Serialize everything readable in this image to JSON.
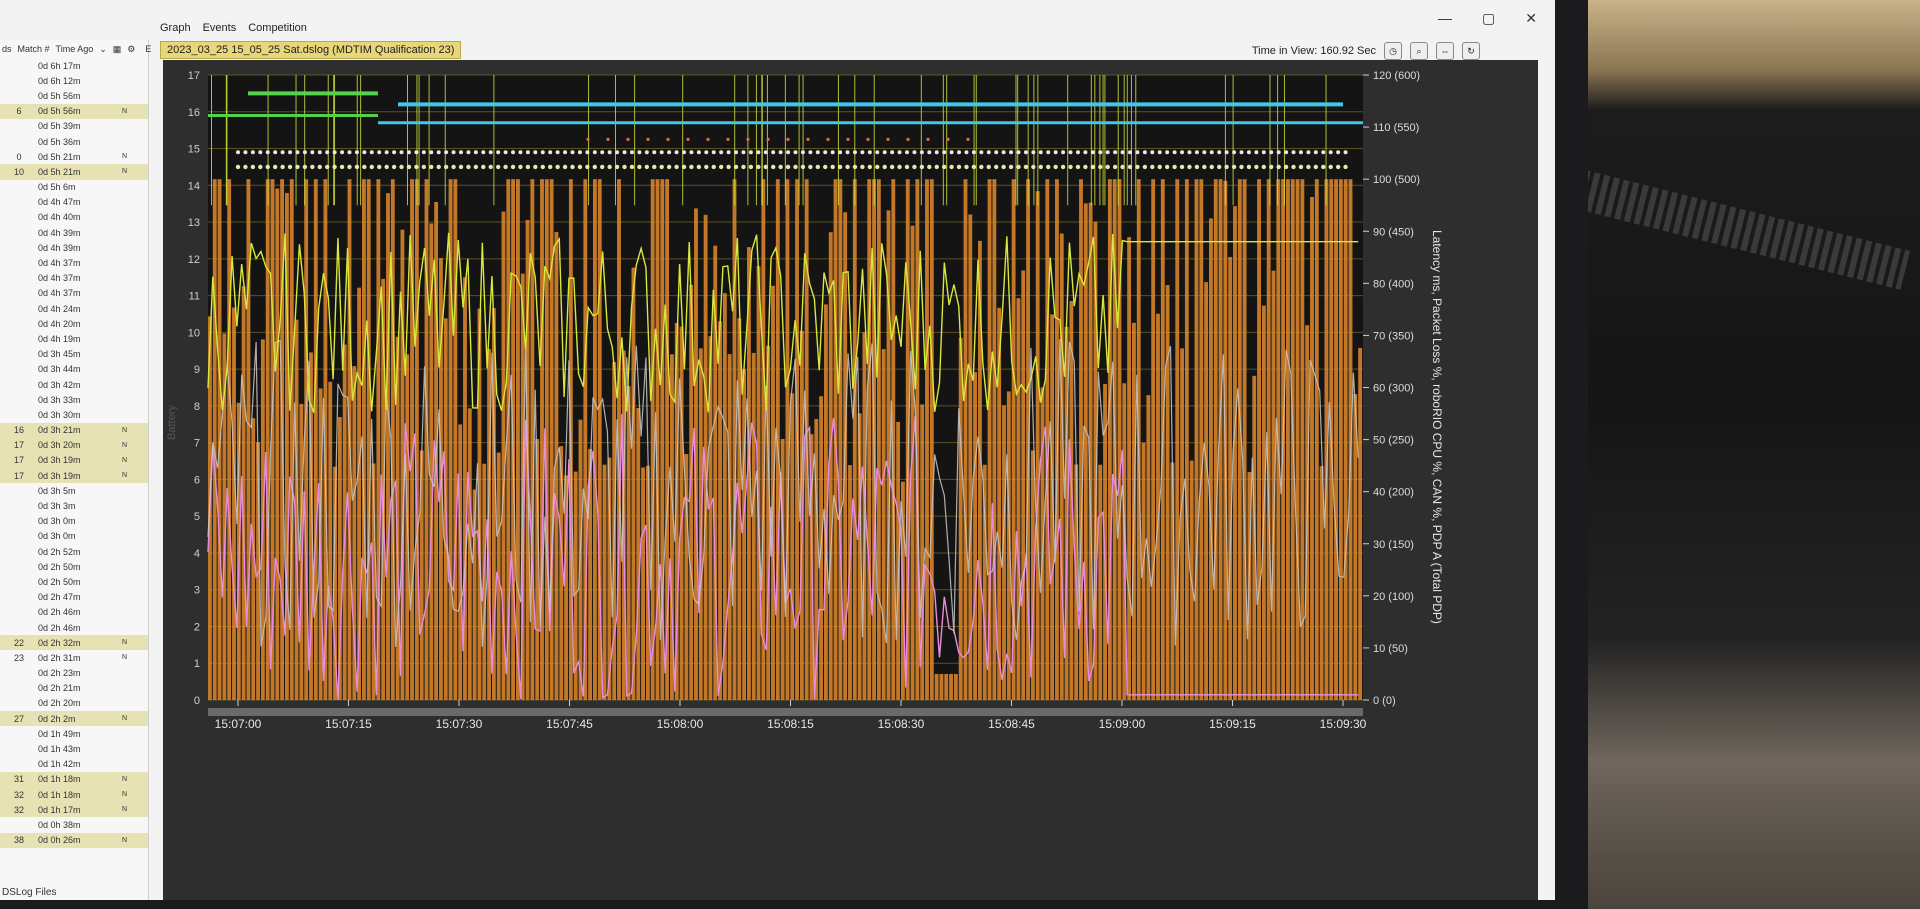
{
  "menu": {
    "graph": "Graph",
    "events": "Events",
    "competition": "Competition"
  },
  "window_controls": {
    "minimize": "—",
    "maximize": "▢",
    "close": "✕"
  },
  "sidebar": {
    "col_a": "ds",
    "col_match": "Match #",
    "col_time": "Time Ago",
    "col_e": "E",
    "rows": [
      {
        "m": "",
        "t": "0d 6h 17m",
        "x": "",
        "hl": false
      },
      {
        "m": "",
        "t": "0d 6h 12m",
        "x": "",
        "hl": false
      },
      {
        "m": "",
        "t": "0d 5h 56m",
        "x": "",
        "hl": false
      },
      {
        "m": "6",
        "t": "0d 5h 56m",
        "x": "N",
        "hl": true
      },
      {
        "m": "",
        "t": "0d 5h 39m",
        "x": "",
        "hl": false
      },
      {
        "m": "",
        "t": "0d 5h 36m",
        "x": "",
        "hl": false
      },
      {
        "m": "0",
        "t": "0d 5h 21m",
        "x": "N",
        "hl": false
      },
      {
        "m": "10",
        "t": "0d 5h 21m",
        "x": "N",
        "hl": true
      },
      {
        "m": "",
        "t": "0d 5h 6m",
        "x": "",
        "hl": false
      },
      {
        "m": "",
        "t": "0d 4h 47m",
        "x": "",
        "hl": false
      },
      {
        "m": "",
        "t": "0d 4h 40m",
        "x": "",
        "hl": false
      },
      {
        "m": "",
        "t": "0d 4h 39m",
        "x": "",
        "hl": false
      },
      {
        "m": "",
        "t": "0d 4h 39m",
        "x": "",
        "hl": false
      },
      {
        "m": "",
        "t": "0d 4h 37m",
        "x": "",
        "hl": false
      },
      {
        "m": "",
        "t": "0d 4h 37m",
        "x": "",
        "hl": false
      },
      {
        "m": "",
        "t": "0d 4h 37m",
        "x": "",
        "hl": false
      },
      {
        "m": "",
        "t": "0d 4h 24m",
        "x": "",
        "hl": false
      },
      {
        "m": "",
        "t": "0d 4h 20m",
        "x": "",
        "hl": false
      },
      {
        "m": "",
        "t": "0d 4h 19m",
        "x": "",
        "hl": false
      },
      {
        "m": "",
        "t": "0d 3h 45m",
        "x": "",
        "hl": false
      },
      {
        "m": "",
        "t": "0d 3h 44m",
        "x": "",
        "hl": false
      },
      {
        "m": "",
        "t": "0d 3h 42m",
        "x": "",
        "hl": false
      },
      {
        "m": "",
        "t": "0d 3h 33m",
        "x": "",
        "hl": false
      },
      {
        "m": "",
        "t": "0d 3h 30m",
        "x": "",
        "hl": false
      },
      {
        "m": "16",
        "t": "0d 3h 21m",
        "x": "N",
        "hl": true
      },
      {
        "m": "17",
        "t": "0d 3h 20m",
        "x": "N",
        "hl": true
      },
      {
        "m": "17",
        "t": "0d 3h 19m",
        "x": "N",
        "hl": true
      },
      {
        "m": "17",
        "t": "0d 3h 19m",
        "x": "N",
        "hl": true
      },
      {
        "m": "",
        "t": "0d 3h 5m",
        "x": "",
        "hl": false
      },
      {
        "m": "",
        "t": "0d 3h 3m",
        "x": "",
        "hl": false
      },
      {
        "m": "",
        "t": "0d 3h 0m",
        "x": "",
        "hl": false
      },
      {
        "m": "",
        "t": "0d 3h 0m",
        "x": "",
        "hl": false
      },
      {
        "m": "",
        "t": "0d 2h 52m",
        "x": "",
        "hl": false
      },
      {
        "m": "",
        "t": "0d 2h 50m",
        "x": "",
        "hl": false
      },
      {
        "m": "",
        "t": "0d 2h 50m",
        "x": "",
        "hl": false
      },
      {
        "m": "",
        "t": "0d 2h 47m",
        "x": "",
        "hl": false
      },
      {
        "m": "",
        "t": "0d 2h 46m",
        "x": "",
        "hl": false
      },
      {
        "m": "",
        "t": "0d 2h 46m",
        "x": "",
        "hl": false
      },
      {
        "m": "22",
        "t": "0d 2h 32m",
        "x": "N",
        "hl": true
      },
      {
        "m": "23",
        "t": "0d 2h 31m",
        "x": "N",
        "hl": false
      },
      {
        "m": "",
        "t": "0d 2h 23m",
        "x": "",
        "hl": false
      },
      {
        "m": "",
        "t": "0d 2h 21m",
        "x": "",
        "hl": false
      },
      {
        "m": "",
        "t": "0d 2h 20m",
        "x": "",
        "hl": false
      },
      {
        "m": "27",
        "t": "0d 2h 2m",
        "x": "N",
        "hl": true
      },
      {
        "m": "",
        "t": "0d 1h 49m",
        "x": "",
        "hl": false
      },
      {
        "m": "",
        "t": "0d 1h 43m",
        "x": "",
        "hl": false
      },
      {
        "m": "",
        "t": "0d 1h 42m",
        "x": "",
        "hl": false
      },
      {
        "m": "31",
        "t": "0d 1h 18m",
        "x": "N",
        "hl": true
      },
      {
        "m": "32",
        "t": "0d 1h 18m",
        "x": "N",
        "hl": true
      },
      {
        "m": "32",
        "t": "0d 1h 17m",
        "x": "N",
        "hl": true
      },
      {
        "m": "",
        "t": "0d 0h 38m",
        "x": "",
        "hl": false
      },
      {
        "m": "38",
        "t": "0d 0h 26m",
        "x": "N",
        "hl": true
      }
    ],
    "footer": "DSLog Files"
  },
  "log_title": "2023_03_25 15_05_25 Sat.dslog (MDTIM Qualification 23)",
  "time_in_view": "Time in View: 160.92 Sec",
  "chart_data": {
    "type": "line",
    "title": "",
    "left_axis": {
      "ticks": [
        "0",
        "1",
        "2",
        "3",
        "4",
        "5",
        "6",
        "7",
        "8",
        "9",
        "10",
        "11",
        "12",
        "13",
        "14",
        "15",
        "16",
        "17"
      ],
      "ylim": [
        0,
        17
      ],
      "label": "Battery"
    },
    "right_axis": {
      "ticks": [
        "0 (0)",
        "10 (50)",
        "20 (100)",
        "30 (150)",
        "40 (200)",
        "50 (250)",
        "60 (300)",
        "70 (350)",
        "80 (400)",
        "90 (450)",
        "100 (500)",
        "110 (550)",
        "120 (600)"
      ],
      "ylim": [
        0,
        120
      ],
      "label": "Latency ms, Packet Loss %, roboRIO CPU %, CAN %, PDP A (Total PDP)"
    },
    "x_ticks": [
      "15:07:00",
      "15:07:15",
      "15:07:30",
      "15:07:45",
      "15:08:00",
      "15:08:15",
      "15:08:30",
      "15:08:45",
      "15:09:00",
      "15:09:15",
      "15:09:30"
    ],
    "colors": {
      "pdp_total": "#e08a2c",
      "can": "#e98be0",
      "cpu": "#d8e83a",
      "latency": "#c9c9c9",
      "battery": "#e9e26a",
      "status_green": "#52d24a",
      "status_cyan": "#40c6e6",
      "mode_dots": "#e6e6e6",
      "pkt_loss": "#e06a50"
    }
  }
}
